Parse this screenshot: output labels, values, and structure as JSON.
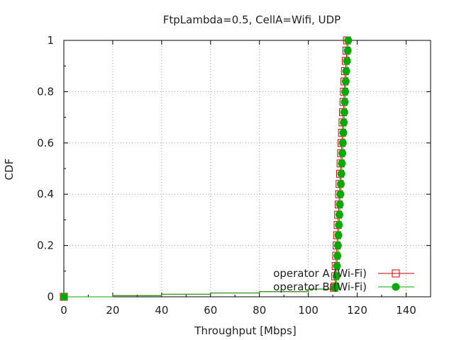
{
  "chart_data": {
    "type": "line",
    "title": "FtpLambda=0.5, CellA=Wifi, UDP",
    "xlabel": "Throughput [Mbps]",
    "ylabel": "CDF",
    "xlim": [
      0,
      150
    ],
    "ylim": [
      0,
      1
    ],
    "xticks": [
      0,
      20,
      40,
      60,
      80,
      100,
      120,
      140
    ],
    "yticks": [
      0,
      0.2,
      0.4,
      0.6,
      0.8,
      1
    ],
    "ytick_labels": [
      "0",
      "0.2",
      "0.4",
      "0.6",
      "0.8",
      "1"
    ],
    "grid": true,
    "legend_position": "bottom-right",
    "series": [
      {
        "name": "operator A (Wi-Fi)",
        "color": "#cc0000",
        "marker": "open-square",
        "points": [
          [
            0,
            0
          ],
          [
            20,
            0.005
          ],
          [
            40,
            0.01
          ],
          [
            60,
            0.015
          ],
          [
            80,
            0.02
          ],
          [
            100,
            0.03
          ],
          [
            110.5,
            0.035
          ],
          [
            110.8,
            0.04
          ],
          [
            111.0,
            0.08
          ],
          [
            111.2,
            0.12
          ],
          [
            111.4,
            0.16
          ],
          [
            111.6,
            0.2
          ],
          [
            111.8,
            0.24
          ],
          [
            112.0,
            0.28
          ],
          [
            112.2,
            0.32
          ],
          [
            112.4,
            0.36
          ],
          [
            112.6,
            0.4
          ],
          [
            112.8,
            0.44
          ],
          [
            113.0,
            0.48
          ],
          [
            113.2,
            0.52
          ],
          [
            113.4,
            0.56
          ],
          [
            113.6,
            0.6
          ],
          [
            113.8,
            0.64
          ],
          [
            114.0,
            0.68
          ],
          [
            114.2,
            0.72
          ],
          [
            114.4,
            0.76
          ],
          [
            114.6,
            0.8
          ],
          [
            114.8,
            0.84
          ],
          [
            115.0,
            0.88
          ],
          [
            115.3,
            0.92
          ],
          [
            115.6,
            0.96
          ],
          [
            115.8,
            1.0
          ]
        ]
      },
      {
        "name": "operator B (Wi-Fi)",
        "color": "#00aa00",
        "marker": "filled-circle",
        "points": [
          [
            0,
            0
          ],
          [
            20,
            0.005
          ],
          [
            40,
            0.01
          ],
          [
            60,
            0.015
          ],
          [
            80,
            0.02
          ],
          [
            100,
            0.03
          ],
          [
            110.9,
            0.035
          ],
          [
            111.2,
            0.04
          ],
          [
            111.5,
            0.08
          ],
          [
            111.7,
            0.12
          ],
          [
            111.9,
            0.16
          ],
          [
            112.1,
            0.2
          ],
          [
            112.3,
            0.24
          ],
          [
            112.5,
            0.28
          ],
          [
            112.7,
            0.32
          ],
          [
            112.9,
            0.36
          ],
          [
            113.1,
            0.4
          ],
          [
            113.3,
            0.44
          ],
          [
            113.5,
            0.48
          ],
          [
            113.7,
            0.52
          ],
          [
            113.9,
            0.56
          ],
          [
            114.1,
            0.6
          ],
          [
            114.3,
            0.64
          ],
          [
            114.5,
            0.68
          ],
          [
            114.7,
            0.72
          ],
          [
            114.9,
            0.76
          ],
          [
            115.1,
            0.8
          ],
          [
            115.3,
            0.84
          ],
          [
            115.5,
            0.88
          ],
          [
            115.8,
            0.92
          ],
          [
            116.1,
            0.96
          ],
          [
            116.3,
            1.0
          ]
        ]
      }
    ]
  }
}
